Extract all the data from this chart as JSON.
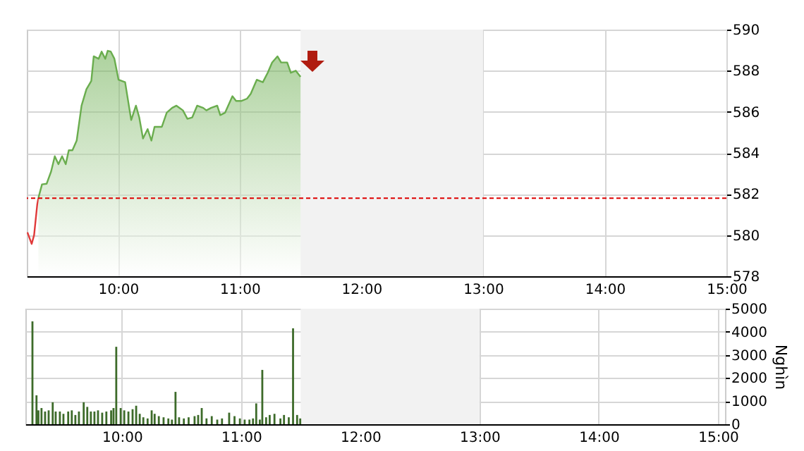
{
  "chart_data": [
    {
      "type": "area",
      "xlim": [
        9.25,
        15
      ],
      "xticks": [
        {
          "value": 10,
          "label": "10:00"
        },
        {
          "value": 11,
          "label": "11:00"
        },
        {
          "value": 12,
          "label": "12:00"
        },
        {
          "value": 13,
          "label": "13:00"
        },
        {
          "value": 14,
          "label": "14:00"
        },
        {
          "value": 15,
          "label": "15:00"
        }
      ],
      "ylim": [
        578,
        590
      ],
      "yticks": [
        578,
        580,
        582,
        584,
        586,
        588,
        590
      ],
      "grid": true,
      "series": [
        {
          "type": "line",
          "color": "#e03a3a",
          "x": [
            9.255,
            9.29,
            9.31,
            9.336,
            9.345
          ],
          "values": [
            580.14,
            579.57,
            580.0,
            581.5,
            581.8
          ]
        },
        {
          "color": "#6aad4e",
          "x": [
            9.345,
            9.375,
            9.413,
            9.45,
            9.48,
            9.51,
            9.54,
            9.57,
            9.595,
            9.625,
            9.66,
            9.7,
            9.74,
            9.78,
            9.8,
            9.84,
            9.865,
            9.895,
            9.915,
            9.94,
            9.97,
            10.004,
            10.058,
            10.108,
            10.147,
            10.174,
            10.205,
            10.243,
            10.274,
            10.3,
            10.36,
            10.4,
            10.444,
            10.48,
            10.533,
            10.57,
            10.61,
            10.65,
            10.7,
            10.726,
            10.764,
            10.815,
            10.84,
            10.88,
            10.94,
            10.97,
            11.015,
            11.06,
            11.09,
            11.14,
            11.19,
            11.23,
            11.266,
            11.31,
            11.34,
            11.39,
            11.42,
            11.46,
            11.5
          ],
          "values": [
            581.8,
            582.47,
            582.5,
            583.1,
            583.84,
            583.45,
            583.84,
            583.45,
            584.13,
            584.13,
            584.6,
            586.3,
            587.1,
            587.5,
            588.7,
            588.58,
            588.93,
            588.58,
            588.97,
            588.93,
            588.58,
            587.56,
            587.44,
            585.6,
            586.3,
            585.73,
            584.7,
            585.16,
            584.6,
            585.27,
            585.27,
            585.96,
            586.19,
            586.3,
            586.07,
            585.66,
            585.73,
            586.3,
            586.19,
            586.07,
            586.19,
            586.3,
            585.84,
            585.96,
            586.76,
            586.53,
            586.53,
            586.64,
            586.87,
            587.56,
            587.44,
            587.9,
            588.4,
            588.7,
            588.4,
            588.4,
            587.9,
            588.0,
            587.7
          ]
        }
      ],
      "ref_lines": [
        {
          "axis": "y",
          "value": 581.8,
          "color": "#dd0000",
          "line_style": "dashed"
        }
      ],
      "bands": [
        {
          "axis": "x",
          "from": 11.5,
          "to": 13,
          "color": "#f2f2f2"
        }
      ]
    },
    {
      "type": "bar",
      "ylabel": "Nghìn",
      "xlim": [
        9.25,
        15
      ],
      "xticks": [
        {
          "value": 10,
          "label": "10:00"
        },
        {
          "value": 11,
          "label": "11:00"
        },
        {
          "value": 12,
          "label": "12:00"
        },
        {
          "value": 13,
          "label": "13:00"
        },
        {
          "value": 14,
          "label": "14:00"
        },
        {
          "value": 15,
          "label": "15:00"
        }
      ],
      "ylim": [
        0,
        5000
      ],
      "yticks": [
        0,
        1000,
        2000,
        3000,
        4000,
        5000
      ],
      "grid": true,
      "color": "#3d6b2a",
      "x": [
        9.25,
        9.284,
        9.3,
        9.326,
        9.356,
        9.386,
        9.42,
        9.445,
        9.48,
        9.51,
        9.55,
        9.58,
        9.61,
        9.64,
        9.68,
        9.71,
        9.74,
        9.77,
        9.8,
        9.835,
        9.87,
        9.91,
        9.93,
        9.953,
        9.99,
        10.02,
        10.055,
        10.09,
        10.12,
        10.15,
        10.18,
        10.216,
        10.25,
        10.275,
        10.31,
        10.35,
        10.39,
        10.42,
        10.45,
        10.48,
        10.52,
        10.56,
        10.61,
        10.64,
        10.67,
        10.71,
        10.754,
        10.8,
        10.84,
        10.9,
        10.945,
        10.99,
        11.03,
        11.07,
        11.1,
        11.127,
        11.157,
        11.178,
        11.21,
        11.24,
        11.28,
        11.33,
        11.36,
        11.4,
        11.436,
        11.47,
        11.496
      ],
      "values": [
        4450,
        1250,
        600,
        700,
        550,
        600,
        950,
        550,
        550,
        450,
        550,
        600,
        400,
        550,
        950,
        750,
        550,
        550,
        600,
        500,
        550,
        600,
        700,
        3350,
        700,
        600,
        550,
        650,
        800,
        450,
        300,
        250,
        600,
        450,
        350,
        300,
        250,
        200,
        1400,
        300,
        250,
        300,
        350,
        400,
        700,
        250,
        350,
        200,
        250,
        500,
        350,
        250,
        200,
        200,
        250,
        900,
        200,
        2350,
        300,
        400,
        450,
        250,
        400,
        300,
        4150,
        400,
        250
      ],
      "bands": [
        {
          "axis": "x",
          "from": 11.5,
          "to": 13,
          "color": "#f2f2f2"
        }
      ]
    }
  ]
}
